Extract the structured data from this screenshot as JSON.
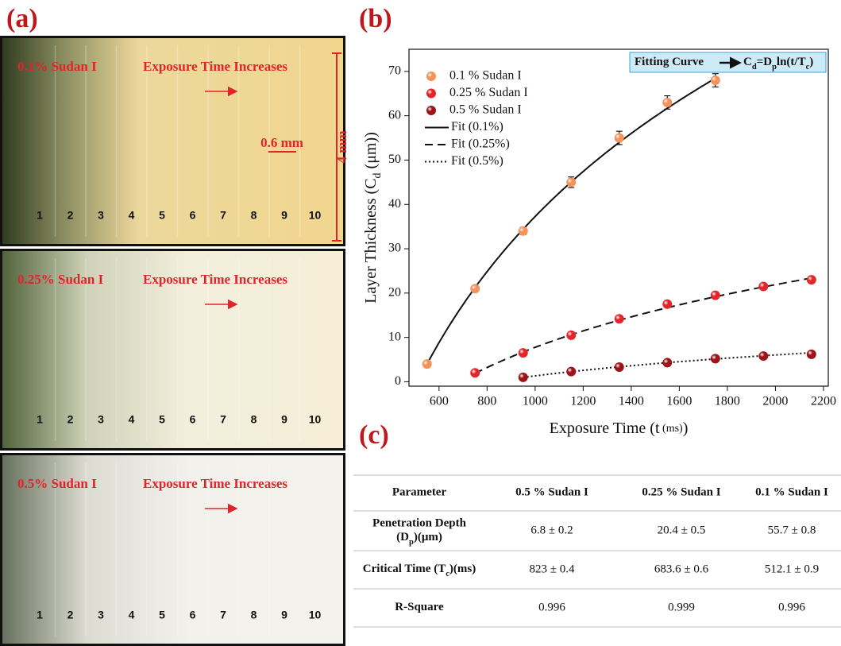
{
  "panel_a": {
    "label": "(a)",
    "images": [
      {
        "label": "0.1% Sudan I",
        "caption": "Exposure Time Increases",
        "strips": [
          "1",
          "2",
          "3",
          "4",
          "5",
          "6",
          "7",
          "8",
          "9",
          "10"
        ]
      },
      {
        "label": "0.25% Sudan I",
        "caption": "Exposure Time Increases",
        "strips": [
          "1",
          "2",
          "3",
          "4",
          "5",
          "6",
          "7",
          "8",
          "9",
          "10"
        ]
      },
      {
        "label": "0.5% Sudan I",
        "caption": "Exposure Time Increases",
        "strips": [
          "1",
          "2",
          "3",
          "4",
          "5",
          "6",
          "7",
          "8",
          "9",
          "10"
        ]
      }
    ],
    "scale_width": "0.6 mm",
    "scale_height": "4 mm"
  },
  "chart_data": {
    "type": "scatter",
    "panel_label": "(b)",
    "xlabel": [
      "Exposure Time (t",
      " (ms)",
      ")"
    ],
    "ylabel": [
      "Layer Thickness (C",
      "d",
      " (μm))"
    ],
    "annotation": {
      "lead": "Fitting Curve",
      "formula": [
        "C",
        "d",
        "=D",
        "p",
        "ln(t/T",
        "c",
        ")"
      ]
    },
    "xlim": [
      475,
      2220
    ],
    "xticks": [
      600,
      800,
      1000,
      1200,
      1400,
      1600,
      1800,
      2000,
      2200
    ],
    "ylim": [
      -1,
      75
    ],
    "yticks": [
      0,
      10,
      20,
      30,
      40,
      50,
      60,
      70
    ],
    "legend": "upper left",
    "series": [
      {
        "name": "0.1 % Sudan I",
        "color": "#f3925a",
        "x": [
          550,
          750,
          950,
          1150,
          1350,
          1550,
          1750
        ],
        "values": [
          4,
          21,
          34,
          45,
          55,
          63,
          68
        ],
        "errors": [
          0.5,
          0.5,
          0.8,
          1.2,
          1.5,
          1.5,
          1.5
        ],
        "fit": {
          "name": "Fit (0.1%)",
          "dash": "solid",
          "Dp": 55.7,
          "Tc": 512.1
        }
      },
      {
        "name": "0.25 % Sudan I",
        "color": "#e3262a",
        "x": [
          750,
          950,
          1150,
          1350,
          1550,
          1750,
          1950,
          2150
        ],
        "values": [
          2,
          6.5,
          10.5,
          14.2,
          17.5,
          19.5,
          21.5,
          23
        ],
        "fit": {
          "name": "Fit (0.25%)",
          "dash": "dashed",
          "Dp": 20.4,
          "Tc": 683.6
        }
      },
      {
        "name": "0.5 % Sudan I",
        "color": "#9c1419",
        "x": [
          950,
          1150,
          1350,
          1550,
          1750,
          1950,
          2150
        ],
        "values": [
          1,
          2.3,
          3.3,
          4.3,
          5.2,
          5.8,
          6.2
        ],
        "fit": {
          "name": "Fit (0.5%)",
          "dash": "dotted",
          "Dp": 6.8,
          "Tc": 823
        }
      }
    ]
  },
  "panel_c": {
    "label": "(c)",
    "header": [
      "Parameter",
      "0.5 % Sudan I",
      "0.25 % Sudan I",
      "0.1 % Sudan I"
    ],
    "rows": [
      [
        [
          "Penetration Depth",
          "(D",
          "p",
          ")(μm)"
        ],
        "6.8 ± 0.2",
        "20.4 ± 0.5",
        "55.7 ± 0.8"
      ],
      [
        [
          "Critical Time (T",
          "c",
          ")(ms)"
        ],
        "823 ± 0.4",
        "683.6 ± 0.6",
        "512.1 ± 0.9"
      ],
      [
        [
          "R-Square"
        ],
        "0.996",
        "0.999",
        "0.996"
      ]
    ]
  }
}
